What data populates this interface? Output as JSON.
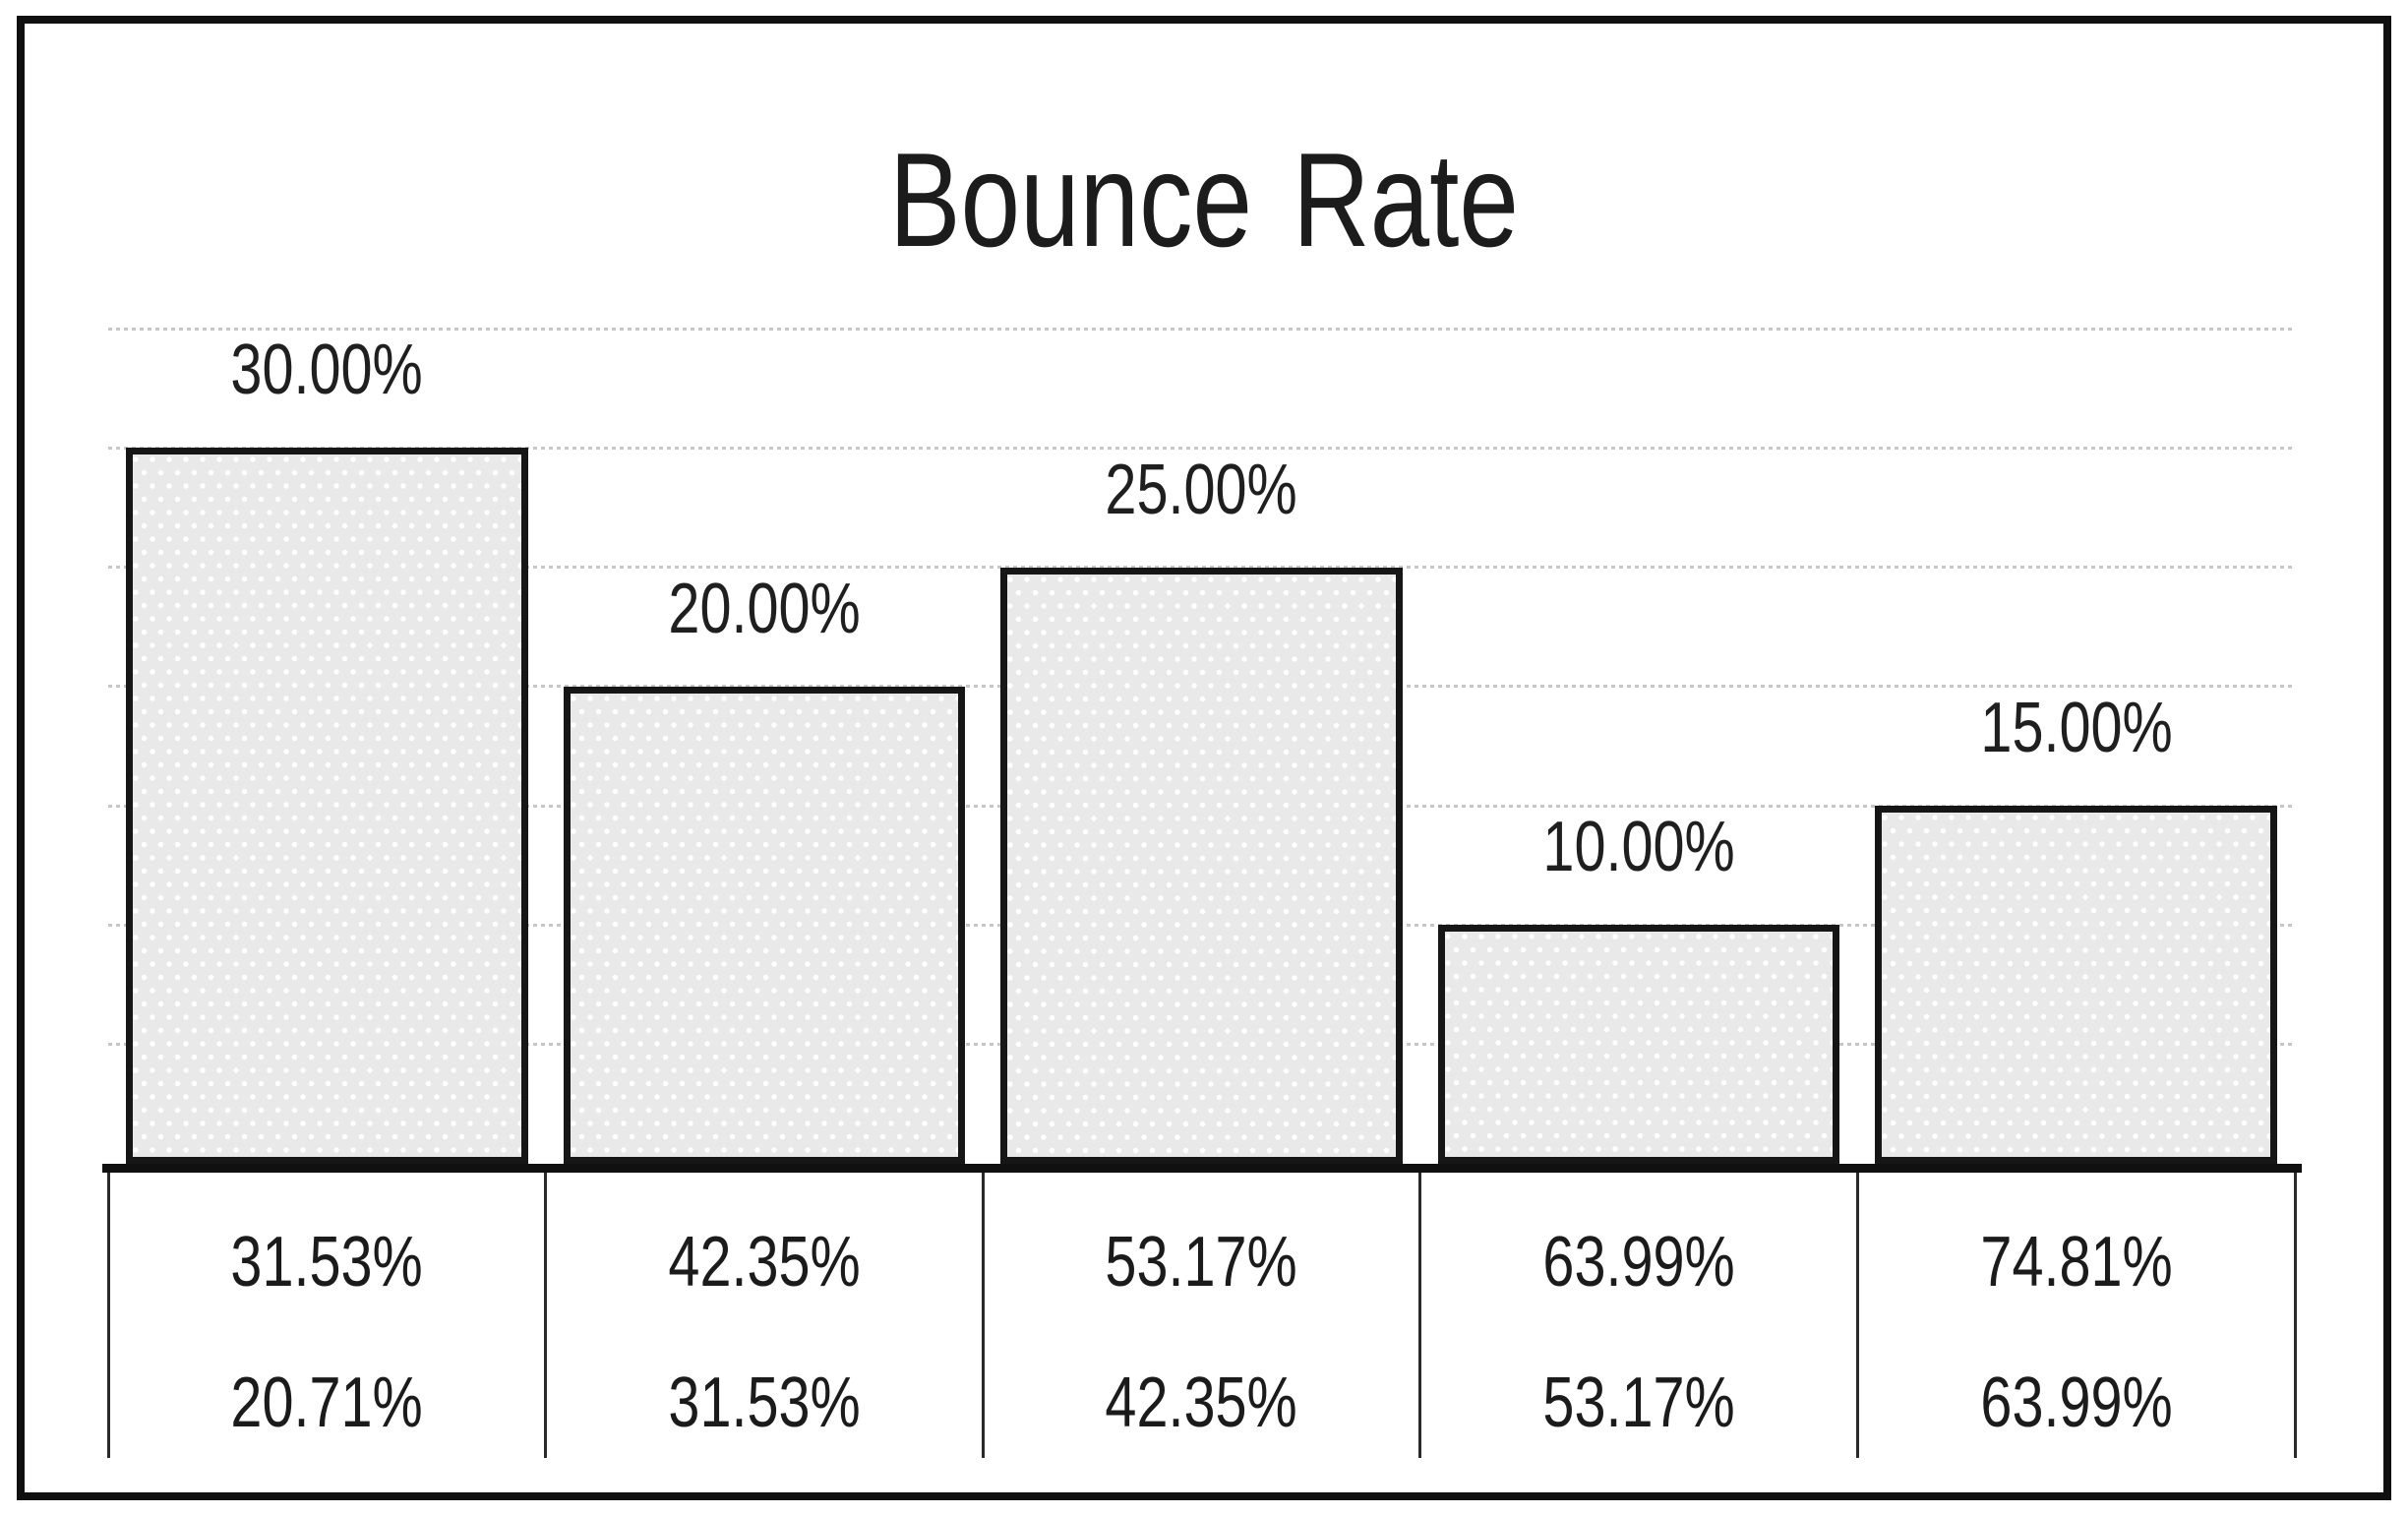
{
  "title": "Bounce Rate",
  "chart_data": {
    "type": "bar",
    "title": "Bounce Rate",
    "values": [
      30,
      20,
      25,
      10,
      15
    ],
    "value_labels": [
      "30.00%",
      "20.00%",
      "25.00%",
      "10.00%",
      "15.00%"
    ],
    "x_table_rows": [
      [
        "31.53%",
        "42.35%",
        "53.17%",
        "63.99%",
        "74.81%"
      ],
      [
        "20.71%",
        "31.53%",
        "42.35%",
        "53.17%",
        "63.99%"
      ]
    ],
    "ylim": [
      0,
      35
    ],
    "gridline_interval": 5,
    "grid": true,
    "legend_position": "none",
    "xlabel": "",
    "ylabel": ""
  },
  "colors": {
    "background": "#ffffff",
    "frame_border": "#101010",
    "bar_fill": "#e9e9e9",
    "bar_dot": "#ffffff",
    "bar_border": "#161616",
    "gridline": "#c7c7c7",
    "text": "#1c1c1c"
  }
}
